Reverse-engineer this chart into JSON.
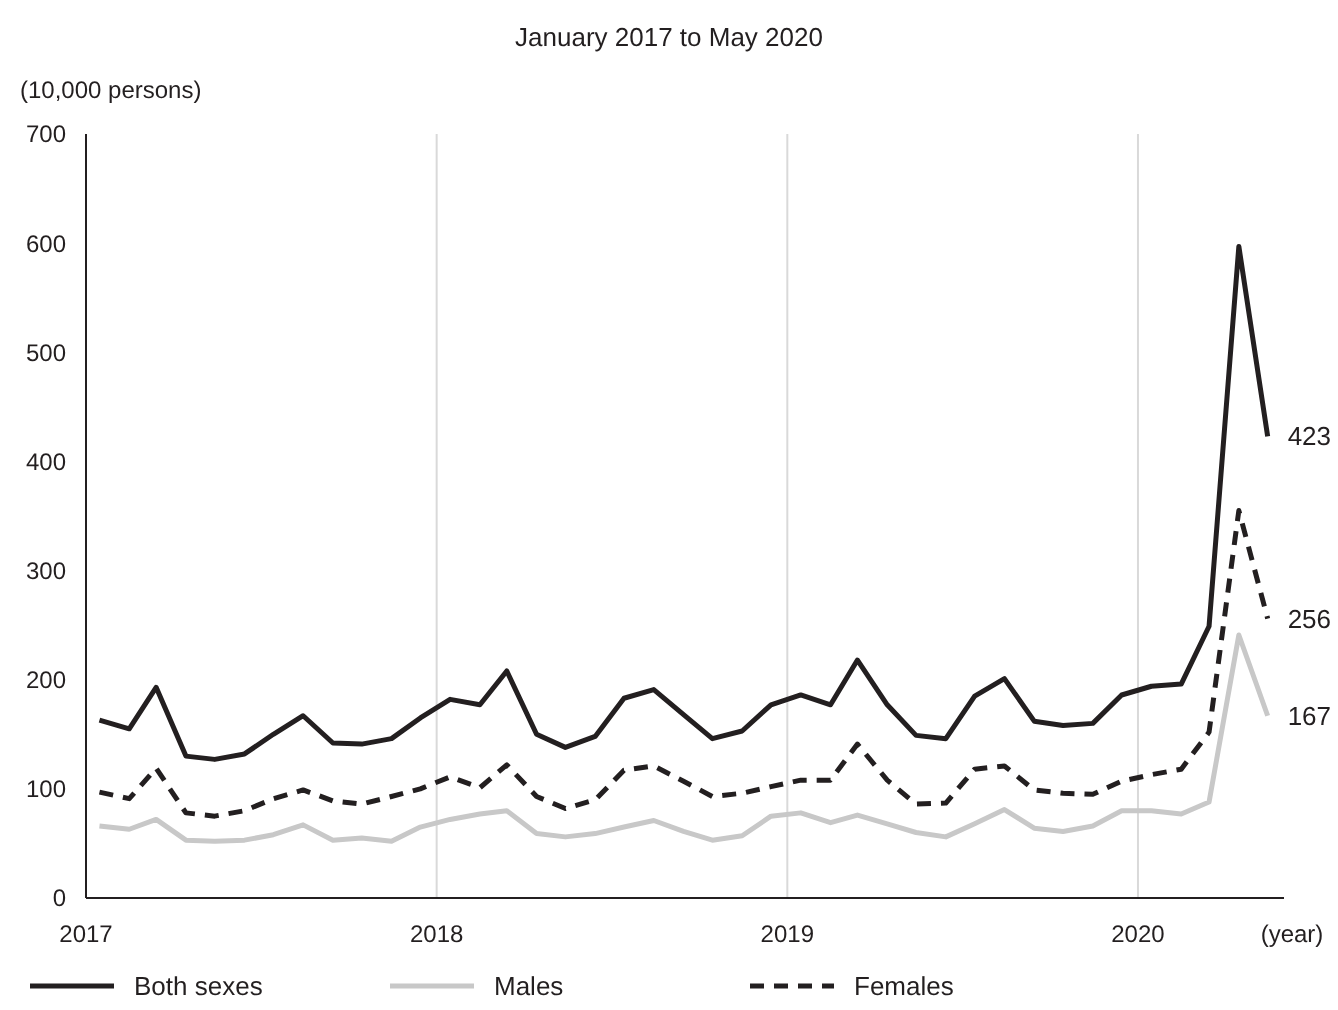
{
  "chart_data": {
    "type": "line",
    "title": "January 2017 to May 2020",
    "ylabel": "(10,000 persons)",
    "xlabel": "(year)",
    "x": [
      "2017-01-15",
      "2017-02-15",
      "2017-03-15",
      "2017-04-15",
      "2017-05-15",
      "2017-06-15",
      "2017-07-15",
      "2017-08-15",
      "2017-09-15",
      "2017-10-15",
      "2017-11-15",
      "2017-12-15",
      "2018-01-15",
      "2018-02-15",
      "2018-03-15",
      "2018-04-15",
      "2018-05-15",
      "2018-06-15",
      "2018-07-15",
      "2018-08-15",
      "2018-09-15",
      "2018-10-15",
      "2018-11-15",
      "2018-12-15",
      "2019-01-15",
      "2019-02-15",
      "2019-03-15",
      "2019-04-15",
      "2019-05-15",
      "2019-06-15",
      "2019-07-15",
      "2019-08-15",
      "2019-09-15",
      "2019-10-15",
      "2019-11-15",
      "2019-12-15",
      "2020-01-15",
      "2020-02-15",
      "2020-03-15",
      "2020-04-15",
      "2020-05-15"
    ],
    "series": [
      {
        "name": "Both sexes",
        "color": "#231f20",
        "line_style": "solid",
        "values": [
          163,
          155,
          193,
          130,
          127,
          132,
          150,
          167,
          142,
          141,
          146,
          165,
          182,
          177,
          208,
          150,
          138,
          148,
          183,
          191,
          168,
          146,
          153,
          177,
          186,
          177,
          218,
          177,
          149,
          146,
          185,
          201,
          162,
          158,
          160,
          186,
          194,
          196,
          249,
          597,
          423
        ],
        "value_labels": [
          null,
          null,
          null,
          null,
          null,
          null,
          null,
          null,
          null,
          null,
          null,
          null,
          null,
          null,
          null,
          null,
          null,
          null,
          null,
          null,
          null,
          null,
          null,
          null,
          null,
          null,
          null,
          null,
          null,
          null,
          null,
          null,
          null,
          null,
          null,
          null,
          null,
          null,
          null,
          null,
          "423"
        ]
      },
      {
        "name": "Males",
        "color": "#c8c8c8",
        "line_style": "solid",
        "values": [
          66,
          63,
          72,
          53,
          52,
          53,
          58,
          67,
          53,
          55,
          52,
          65,
          72,
          77,
          80,
          59,
          56,
          59,
          65,
          71,
          61,
          53,
          57,
          75,
          78,
          69,
          76,
          68,
          60,
          56,
          68,
          81,
          64,
          61,
          66,
          80,
          80,
          77,
          88,
          241,
          167
        ],
        "value_labels": [
          null,
          null,
          null,
          null,
          null,
          null,
          null,
          null,
          null,
          null,
          null,
          null,
          null,
          null,
          null,
          null,
          null,
          null,
          null,
          null,
          null,
          null,
          null,
          null,
          null,
          null,
          null,
          null,
          null,
          null,
          null,
          null,
          null,
          null,
          null,
          null,
          null,
          null,
          null,
          null,
          "167"
        ]
      },
      {
        "name": "Females",
        "color": "#231f20",
        "line_style": "dashed",
        "values": [
          97,
          91,
          119,
          78,
          75,
          80,
          91,
          99,
          89,
          86,
          93,
          100,
          111,
          101,
          122,
          93,
          82,
          90,
          117,
          121,
          107,
          93,
          96,
          102,
          108,
          108,
          141,
          108,
          86,
          87,
          118,
          121,
          99,
          96,
          95,
          107,
          113,
          118,
          152,
          355,
          256
        ],
        "value_labels": [
          null,
          null,
          null,
          null,
          null,
          null,
          null,
          null,
          null,
          null,
          null,
          null,
          null,
          null,
          null,
          null,
          null,
          null,
          null,
          null,
          null,
          null,
          null,
          null,
          null,
          null,
          null,
          null,
          null,
          null,
          null,
          null,
          null,
          null,
          null,
          null,
          null,
          null,
          null,
          null,
          "256"
        ]
      }
    ],
    "xlim": [
      "2017-01-01",
      "2020-06-01"
    ],
    "xticks": [
      {
        "value": "2017-01-01",
        "label": "2017"
      },
      {
        "value": "2018-01-01",
        "label": "2018"
      },
      {
        "value": "2019-01-01",
        "label": "2019"
      },
      {
        "value": "2020-01-01",
        "label": "2020"
      }
    ],
    "ylim": [
      0,
      700
    ],
    "yticks": [
      0,
      100,
      200,
      300,
      400,
      500,
      600,
      700
    ],
    "grid": "x",
    "legend": "bottom"
  }
}
